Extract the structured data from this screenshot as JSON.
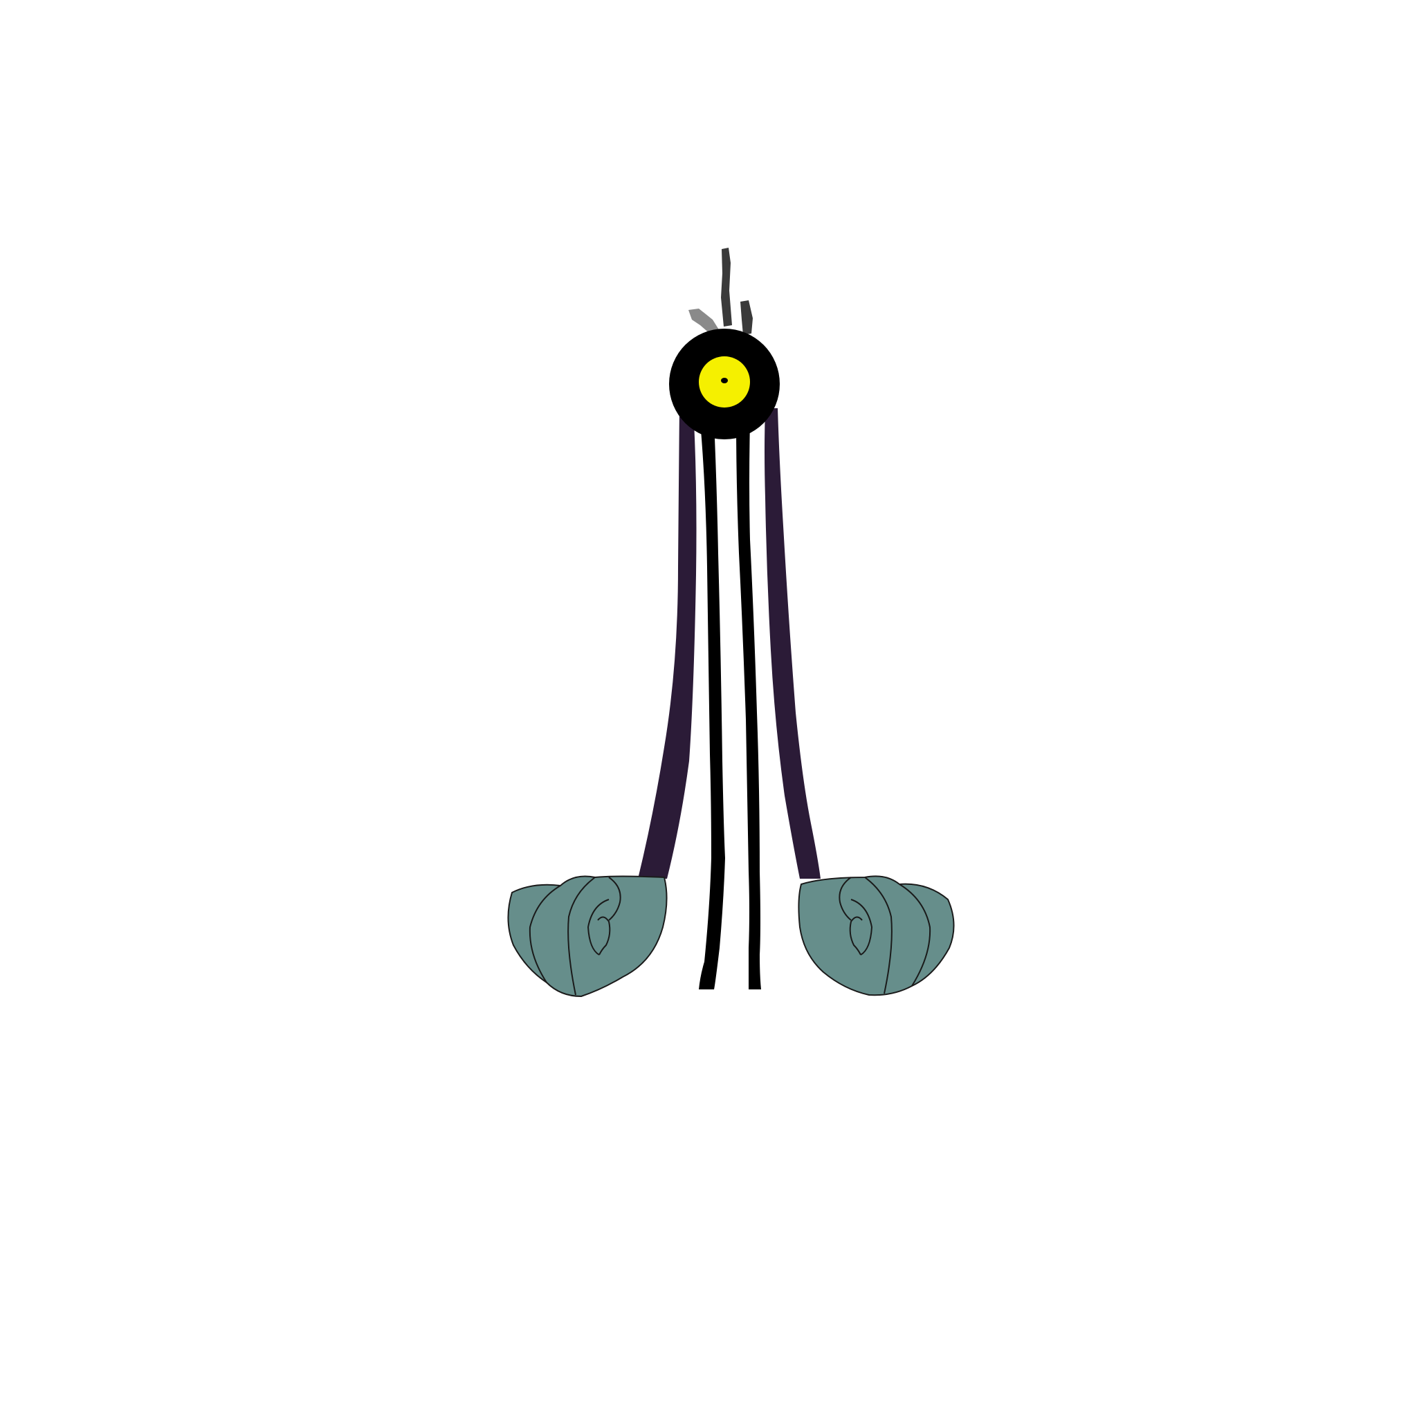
{
  "illustration": {
    "subject": "one-eyed-creature",
    "colors": {
      "background": "#ffffff",
      "head": "#000000",
      "eye_iris": "#f5f000",
      "pupil": "#000000",
      "arms": "#2b1b37",
      "legs": "#000000",
      "fists": "#668e8b",
      "outline": "#1a1a1a",
      "tufts_dark": "#3a3a3a",
      "tufts_light": "#8a8a8a"
    }
  }
}
